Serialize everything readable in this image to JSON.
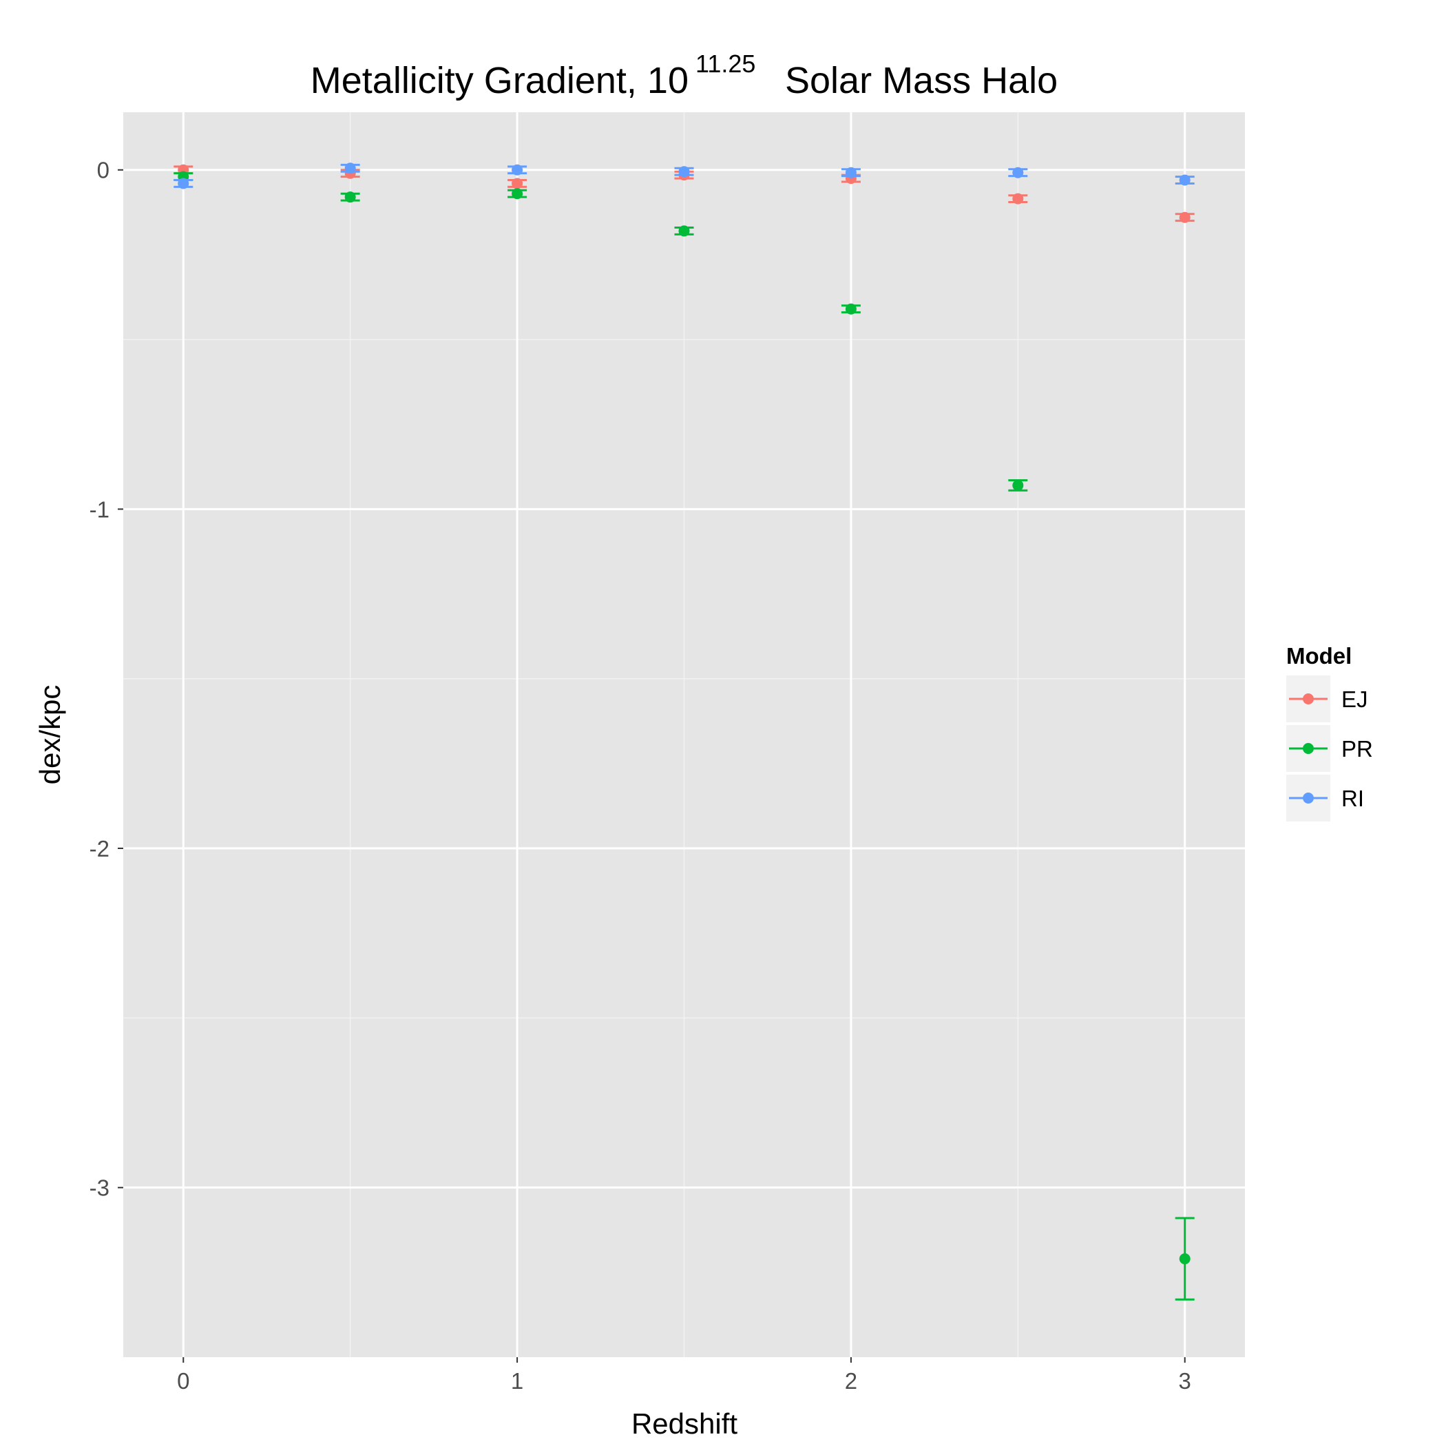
{
  "chart_data": {
    "type": "scatter",
    "title": "Metallicity Gradient, 10",
    "title_superscript": "11.25",
    "title_suffix": "Solar Mass Halo",
    "xlabel": "Redshift",
    "ylabel": "dex/kpc",
    "xlim": [
      -0.18,
      3.18
    ],
    "ylim": [
      -3.5,
      0.17
    ],
    "x_ticks": [
      0,
      1,
      2,
      3
    ],
    "x_tick_labels": [
      "0",
      "1",
      "2",
      "3"
    ],
    "y_ticks": [
      0,
      -1,
      -2,
      -3
    ],
    "y_tick_labels": [
      "0",
      "-1",
      "-2",
      "-3"
    ],
    "grid": true,
    "legend": {
      "title": "Model",
      "position": "right",
      "entries": [
        "EJ",
        "PR",
        "RI"
      ]
    },
    "series": [
      {
        "name": "EJ",
        "color": "#F8766D",
        "points": [
          {
            "x": 0,
            "y": 0.0,
            "err": 0.01
          },
          {
            "x": 0.5,
            "y": -0.01,
            "err": 0.01
          },
          {
            "x": 1,
            "y": -0.04,
            "err": 0.01
          },
          {
            "x": 1.5,
            "y": -0.015,
            "err": 0.01
          },
          {
            "x": 2,
            "y": -0.025,
            "err": 0.01
          },
          {
            "x": 2.5,
            "y": -0.085,
            "err": 0.01
          },
          {
            "x": 3,
            "y": -0.14,
            "err": 0.01
          }
        ]
      },
      {
        "name": "PR",
        "color": "#00BA38",
        "points": [
          {
            "x": 0,
            "y": -0.02,
            "err": 0.01
          },
          {
            "x": 0.5,
            "y": -0.08,
            "err": 0.01
          },
          {
            "x": 1,
            "y": -0.07,
            "err": 0.01
          },
          {
            "x": 1.5,
            "y": -0.18,
            "err": 0.01
          },
          {
            "x": 2,
            "y": -0.41,
            "err": 0.01
          },
          {
            "x": 2.5,
            "y": -0.93,
            "err": 0.015
          },
          {
            "x": 3,
            "y": -3.21,
            "err": 0.12
          }
        ]
      },
      {
        "name": "RI",
        "color": "#619CFF",
        "points": [
          {
            "x": 0,
            "y": -0.04,
            "err": 0.01
          },
          {
            "x": 0.5,
            "y": 0.005,
            "err": 0.01
          },
          {
            "x": 1,
            "y": 0.0,
            "err": 0.01
          },
          {
            "x": 1.5,
            "y": -0.005,
            "err": 0.01
          },
          {
            "x": 2,
            "y": -0.008,
            "err": 0.01
          },
          {
            "x": 2.5,
            "y": -0.008,
            "err": 0.01
          },
          {
            "x": 3,
            "y": -0.03,
            "err": 0.01
          }
        ]
      }
    ]
  }
}
